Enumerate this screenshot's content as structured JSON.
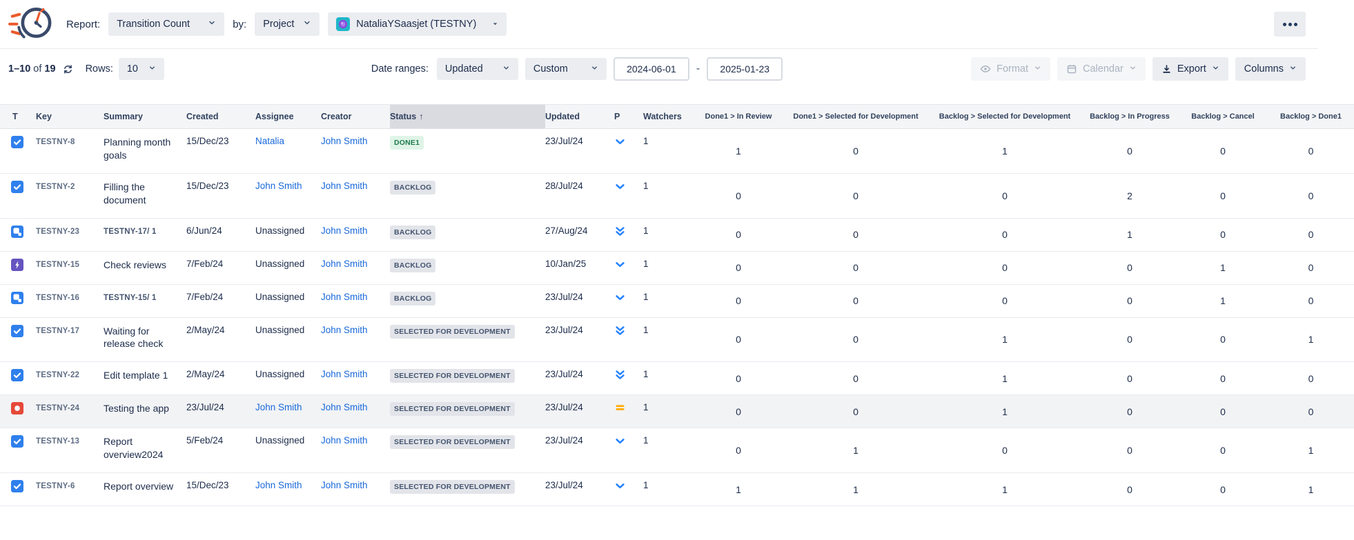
{
  "topbar": {
    "report_label": "Report:",
    "report_value": "Transition Count",
    "by_label": "by:",
    "by_value": "Project",
    "project_value": "NataliaYSaasjet (TESTNY)",
    "more_icon": "ellipsis-icon"
  },
  "toolbar": {
    "range_start": "1–10",
    "range_of": "of",
    "range_total": "19",
    "refresh_icon": "refresh-icon",
    "rows_label": "Rows:",
    "rows_value": "10",
    "date_ranges_label": "Date ranges:",
    "date_field_value": "Updated",
    "date_mode_value": "Custom",
    "date_from": "2024-06-01",
    "date_separator": "-",
    "date_to": "2025-01-23",
    "format_label": "Format",
    "calendar_label": "Calendar",
    "export_label": "Export",
    "columns_label": "Columns"
  },
  "table": {
    "columns": [
      {
        "id": "type",
        "label": "T"
      },
      {
        "id": "key",
        "label": "Key"
      },
      {
        "id": "summary",
        "label": "Summary"
      },
      {
        "id": "created",
        "label": "Created"
      },
      {
        "id": "assignee",
        "label": "Assignee"
      },
      {
        "id": "creator",
        "label": "Creator"
      },
      {
        "id": "status",
        "label": "Status",
        "sorted": "asc"
      },
      {
        "id": "updated",
        "label": "Updated"
      },
      {
        "id": "priority",
        "label": "P"
      },
      {
        "id": "watchers",
        "label": "Watchers"
      },
      {
        "id": "t1",
        "label": "Done1 > In Review",
        "transition": true
      },
      {
        "id": "t2",
        "label": "Done1 > Selected for Development",
        "transition": true
      },
      {
        "id": "t3",
        "label": "Backlog > Selected for Development",
        "transition": true
      },
      {
        "id": "t4",
        "label": "Backlog > In Progress",
        "transition": true
      },
      {
        "id": "t5",
        "label": "Backlog > Cancel",
        "transition": true
      },
      {
        "id": "t6",
        "label": "Backlog > Done1",
        "transition": true,
        "clipped": true
      }
    ],
    "rows": [
      {
        "type": "task",
        "key": "TESTNY-8",
        "summary": "Planning month goals",
        "summary_key_style": false,
        "created": "15/Dec/23",
        "assignee": "Natalia",
        "creator": "John Smith",
        "status": "DONE1",
        "status_color": "green",
        "updated": "23/Jul/24",
        "priority": "low",
        "watchers": "1",
        "counts": [
          "1",
          "0",
          "1",
          "0",
          "0",
          "0"
        ],
        "highlighted": false
      },
      {
        "type": "task",
        "key": "TESTNY-2",
        "summary": "Filling the document",
        "summary_key_style": false,
        "created": "15/Dec/23",
        "assignee": "John Smith",
        "creator": "John Smith",
        "status": "BACKLOG",
        "status_color": "grey",
        "updated": "28/Jul/24",
        "priority": "low",
        "watchers": "1",
        "counts": [
          "0",
          "0",
          "0",
          "2",
          "0",
          "0"
        ],
        "highlighted": false
      },
      {
        "type": "subtask",
        "key": "TESTNY-23",
        "summary": "TESTNY-17/ 1",
        "summary_key_style": true,
        "created": "6/Jun/24",
        "assignee": "Unassigned",
        "creator": "John Smith",
        "status": "BACKLOG",
        "status_color": "grey",
        "updated": "27/Aug/24",
        "priority": "lowest",
        "watchers": "1",
        "counts": [
          "0",
          "0",
          "0",
          "1",
          "0",
          "0"
        ],
        "highlighted": false
      },
      {
        "type": "bolt",
        "key": "TESTNY-15",
        "summary": "Check reviews",
        "summary_key_style": false,
        "created": "7/Feb/24",
        "assignee": "Unassigned",
        "creator": "John Smith",
        "status": "BACKLOG",
        "status_color": "grey",
        "updated": "10/Jan/25",
        "priority": "low",
        "watchers": "1",
        "counts": [
          "0",
          "0",
          "0",
          "0",
          "1",
          "0"
        ],
        "highlighted": false
      },
      {
        "type": "subtask",
        "key": "TESTNY-16",
        "summary": "TESTNY-15/ 1",
        "summary_key_style": true,
        "created": "7/Feb/24",
        "assignee": "Unassigned",
        "creator": "John Smith",
        "status": "BACKLOG",
        "status_color": "grey",
        "updated": "23/Jul/24",
        "priority": "low",
        "watchers": "1",
        "counts": [
          "0",
          "0",
          "0",
          "0",
          "1",
          "0"
        ],
        "highlighted": false
      },
      {
        "type": "task",
        "key": "TESTNY-17",
        "summary": "Waiting for release check",
        "summary_key_style": false,
        "created": "2/May/24",
        "assignee": "Unassigned",
        "creator": "John Smith",
        "status": "SELECTED FOR DEVELOPMENT",
        "status_color": "grey",
        "updated": "23/Jul/24",
        "priority": "lowest",
        "watchers": "1",
        "counts": [
          "0",
          "0",
          "1",
          "0",
          "0",
          "1"
        ],
        "highlighted": false
      },
      {
        "type": "task",
        "key": "TESTNY-22",
        "summary": "Edit template 1",
        "summary_key_style": false,
        "created": "2/May/24",
        "assignee": "Unassigned",
        "creator": "John Smith",
        "status": "SELECTED FOR DEVELOPMENT",
        "status_color": "grey",
        "updated": "23/Jul/24",
        "priority": "lowest",
        "watchers": "1",
        "counts": [
          "0",
          "0",
          "1",
          "0",
          "0",
          "0"
        ],
        "highlighted": false
      },
      {
        "type": "bug",
        "key": "TESTNY-24",
        "summary": "Testing the app",
        "summary_key_style": false,
        "created": "23/Jul/24",
        "assignee": "John Smith",
        "creator": "John Smith",
        "status": "SELECTED FOR DEVELOPMENT",
        "status_color": "grey",
        "updated": "23/Jul/24",
        "priority": "medium",
        "watchers": "1",
        "counts": [
          "0",
          "0",
          "1",
          "0",
          "0",
          "0"
        ],
        "highlighted": true
      },
      {
        "type": "task",
        "key": "TESTNY-13",
        "summary": "Report overview2024",
        "summary_key_style": false,
        "created": "5/Feb/24",
        "assignee": "Unassigned",
        "creator": "John Smith",
        "status": "SELECTED FOR DEVELOPMENT",
        "status_color": "grey",
        "updated": "23/Jul/24",
        "priority": "low",
        "watchers": "1",
        "counts": [
          "0",
          "1",
          "0",
          "0",
          "0",
          "1"
        ],
        "highlighted": false
      },
      {
        "type": "task",
        "key": "TESTNY-6",
        "summary": "Report overview",
        "summary_key_style": false,
        "created": "15/Dec/23",
        "assignee": "John Smith",
        "creator": "John Smith",
        "status": "SELECTED FOR DEVELOPMENT",
        "status_color": "grey",
        "updated": "23/Jul/24",
        "priority": "low",
        "watchers": "1",
        "counts": [
          "1",
          "1",
          "1",
          "0",
          "0",
          "1"
        ],
        "highlighted": false
      }
    ]
  },
  "colors": {
    "accent_blue": "#1868db",
    "icon_blue": "#2f80ed",
    "icon_purple": "#6554c0",
    "icon_red": "#e5493a",
    "priority_blue": "#2684ff",
    "priority_orange": "#ffab00",
    "badge_green_bg": "#dff4e7",
    "badge_green_text": "#1e7a4e",
    "badge_grey_bg": "#e2e4e9",
    "logo_orange": "#eb5a2d",
    "logo_navy": "#3a4a6b"
  }
}
